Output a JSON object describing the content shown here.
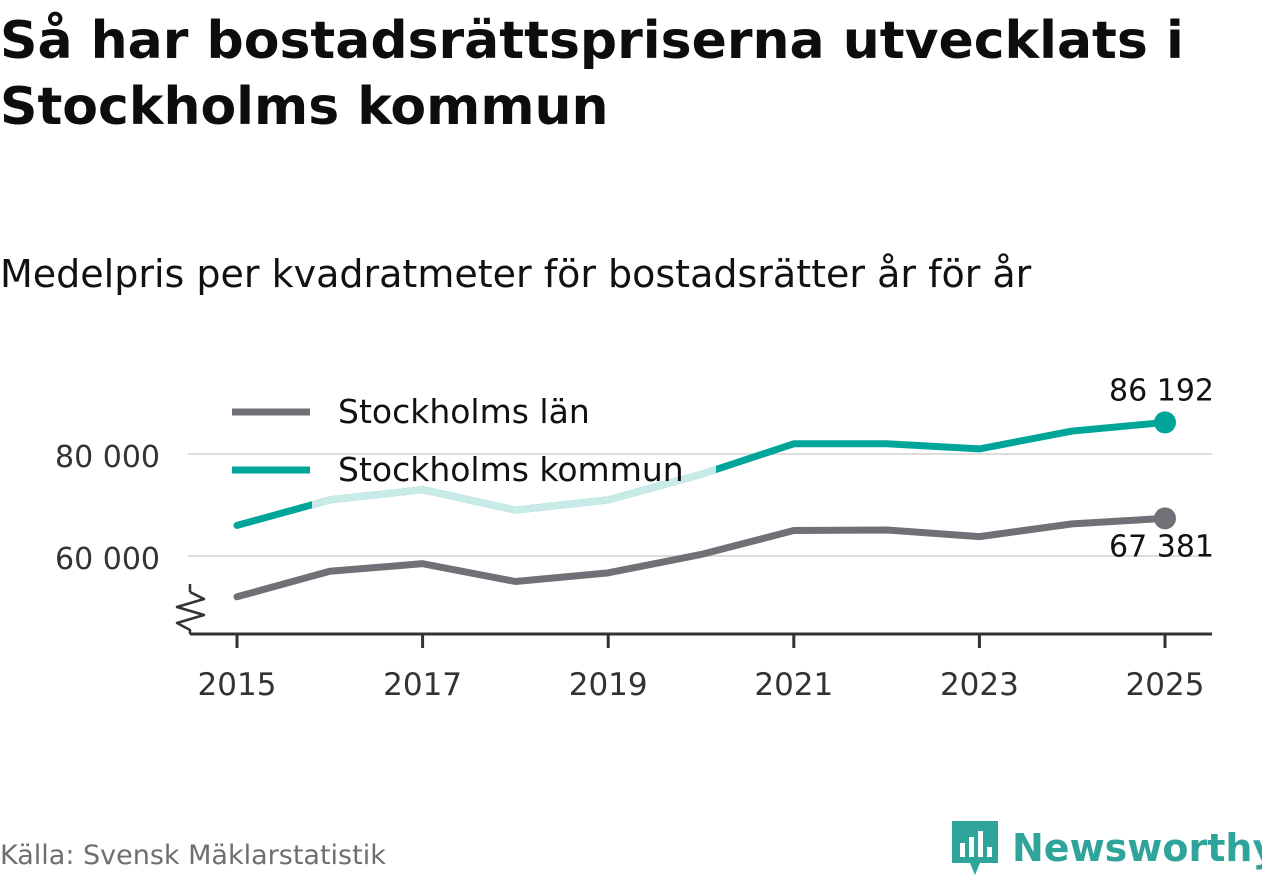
{
  "title": "Så har bostadsrättspriserna utvecklats i Stockholms kommun",
  "subtitle": "Medelpris per kvadratmeter för bostadsrätter år för år",
  "source": "Källa: Svensk Mäklarstatistik",
  "brand": "Newsworthy",
  "colors": {
    "lan": "#707076",
    "kommun": "#00a59a",
    "kommun_faded": "#c8ebe7",
    "grid": "#dddddd",
    "axis": "#333333"
  },
  "chart_data": {
    "type": "line",
    "title": "Medelpris per kvadratmeter för bostadsrätter år för år",
    "x": [
      2015,
      2016,
      2017,
      2018,
      2019,
      2020,
      2021,
      2022,
      2023,
      2024,
      2025
    ],
    "xticks": [
      "2015",
      "2017",
      "2019",
      "2021",
      "2023",
      "2025"
    ],
    "yticks": [
      {
        "value": 60000,
        "label": "60 000"
      },
      {
        "value": 80000,
        "label": "80 000"
      }
    ],
    "ylim": [
      45000,
      90000
    ],
    "axis_break": true,
    "xlabel": "",
    "ylabel": "",
    "series": [
      {
        "name": "Stockholms län",
        "key": "lan",
        "values": [
          52000,
          57000,
          58500,
          55000,
          56700,
          60300,
          65000,
          65100,
          63800,
          66300,
          67381
        ],
        "end_label": "67 381"
      },
      {
        "name": "Stockholms kommun",
        "key": "kommun",
        "values": [
          66000,
          71000,
          73000,
          69000,
          71000,
          76000,
          82000,
          82000,
          81000,
          84500,
          86192
        ],
        "end_label": "86 192"
      }
    ],
    "legend": "top-left"
  }
}
